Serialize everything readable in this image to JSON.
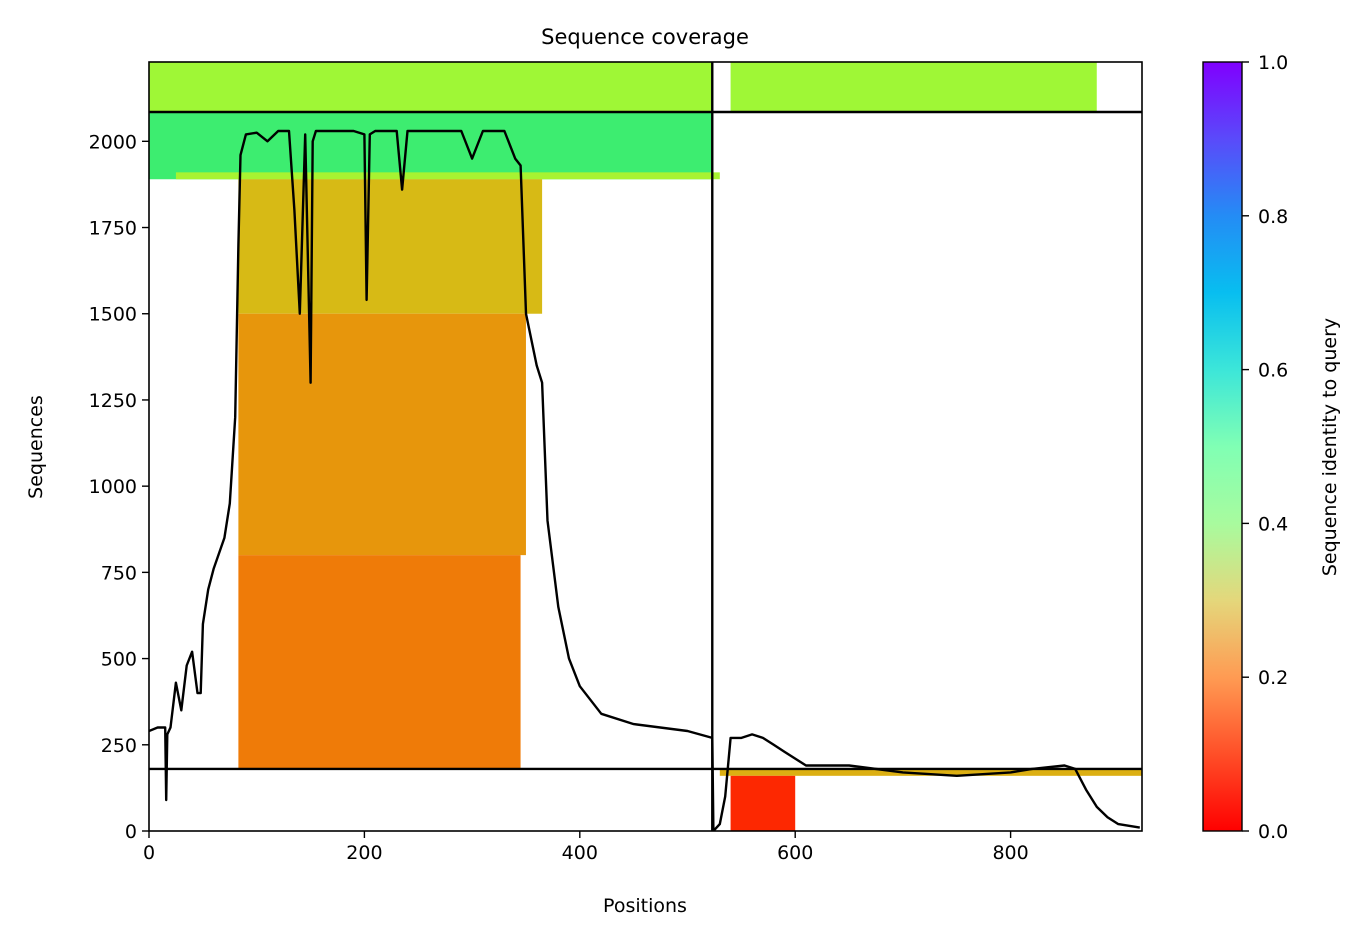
{
  "chart_data": {
    "type": "heatmap",
    "title": "Sequence coverage",
    "xlabel": "Positions",
    "ylabel": "Sequences",
    "xlim": [
      0,
      922
    ],
    "ylim": [
      0,
      2230
    ],
    "x_ticks": [
      {
        "value": 0,
        "label": "0"
      },
      {
        "value": 200,
        "label": "200"
      },
      {
        "value": 400,
        "label": "400"
      },
      {
        "value": 600,
        "label": "600"
      },
      {
        "value": 800,
        "label": "800"
      }
    ],
    "y_ticks": [
      {
        "value": 0,
        "label": "0"
      },
      {
        "value": 250,
        "label": "250"
      },
      {
        "value": 500,
        "label": "500"
      },
      {
        "value": 750,
        "label": "750"
      },
      {
        "value": 1000,
        "label": "1000"
      },
      {
        "value": 1250,
        "label": "1250"
      },
      {
        "value": 1500,
        "label": "1500"
      },
      {
        "value": 1750,
        "label": "1750"
      },
      {
        "value": 2000,
        "label": "2000"
      }
    ],
    "chain_boundary_x": 523,
    "group_boundaries_y": [
      180,
      2085
    ],
    "colorbar": {
      "label": "Sequence identity to query",
      "range": [
        0.0,
        1.0
      ],
      "colormap": "rainbow",
      "ticks": [
        {
          "value": 0.0,
          "label": "0.0"
        },
        {
          "value": 0.2,
          "label": "0.2"
        },
        {
          "value": 0.4,
          "label": "0.4"
        },
        {
          "value": 0.6,
          "label": "0.6"
        },
        {
          "value": 0.8,
          "label": "0.8"
        },
        {
          "value": 1.0,
          "label": "1.0"
        }
      ]
    },
    "coverage_blocks": [
      {
        "x_start": 0,
        "x_end": 523,
        "y_start": 2085,
        "y_end": 2230,
        "identity": 0.42
      },
      {
        "x_start": 540,
        "x_end": 880,
        "y_start": 2085,
        "y_end": 2230,
        "identity": 0.42
      },
      {
        "x_start": 0,
        "x_end": 523,
        "y_start": 1890,
        "y_end": 2085,
        "identity": 0.62
      },
      {
        "x_start": 25,
        "x_end": 530,
        "y_start": 1890,
        "y_end": 1910,
        "identity": 0.4
      },
      {
        "x_start": 83,
        "x_end": 365,
        "y_start": 1500,
        "y_end": 1890,
        "identity": 0.26
      },
      {
        "x_start": 83,
        "x_end": 350,
        "y_start": 800,
        "y_end": 1500,
        "identity": 0.2
      },
      {
        "x_start": 83,
        "x_end": 345,
        "y_start": 180,
        "y_end": 800,
        "identity": 0.16
      },
      {
        "x_start": 530,
        "x_end": 922,
        "y_start": 160,
        "y_end": 180,
        "identity": 0.24
      },
      {
        "x_start": 540,
        "x_end": 600,
        "y_start": 0,
        "y_end": 160,
        "identity": 0.05
      }
    ],
    "coverage_line": {
      "x": [
        0,
        8,
        15,
        16,
        17,
        20,
        25,
        30,
        35,
        40,
        45,
        48,
        50,
        55,
        60,
        70,
        75,
        80,
        83,
        85,
        90,
        100,
        110,
        120,
        130,
        135,
        140,
        145,
        150,
        152,
        155,
        160,
        170,
        180,
        190,
        200,
        202,
        205,
        210,
        230,
        235,
        240,
        250,
        270,
        280,
        290,
        300,
        310,
        320,
        330,
        340,
        345,
        350,
        360,
        365,
        370,
        380,
        390,
        400,
        420,
        450,
        500,
        523,
        524,
        530,
        535,
        540,
        550,
        560,
        570,
        580,
        590,
        600,
        610,
        650,
        700,
        750,
        800,
        820,
        850,
        860,
        870,
        880,
        890,
        900,
        920
      ],
      "y": [
        290,
        300,
        300,
        90,
        280,
        300,
        430,
        350,
        480,
        520,
        400,
        400,
        600,
        700,
        760,
        850,
        950,
        1200,
        1700,
        1960,
        2020,
        2025,
        2000,
        2030,
        2030,
        1800,
        1500,
        2020,
        1300,
        2000,
        2030,
        2030,
        2030,
        2030,
        2030,
        2020,
        1540,
        2020,
        2030,
        2030,
        1860,
        2030,
        2030,
        2030,
        2030,
        2030,
        1950,
        2030,
        2030,
        2030,
        1950,
        1930,
        1500,
        1350,
        1300,
        900,
        650,
        500,
        420,
        340,
        310,
        290,
        270,
        0,
        20,
        100,
        270,
        270,
        280,
        270,
        250,
        230,
        210,
        190,
        190,
        170,
        160,
        170,
        180,
        190,
        180,
        120,
        70,
        40,
        20,
        10
      ]
    }
  }
}
